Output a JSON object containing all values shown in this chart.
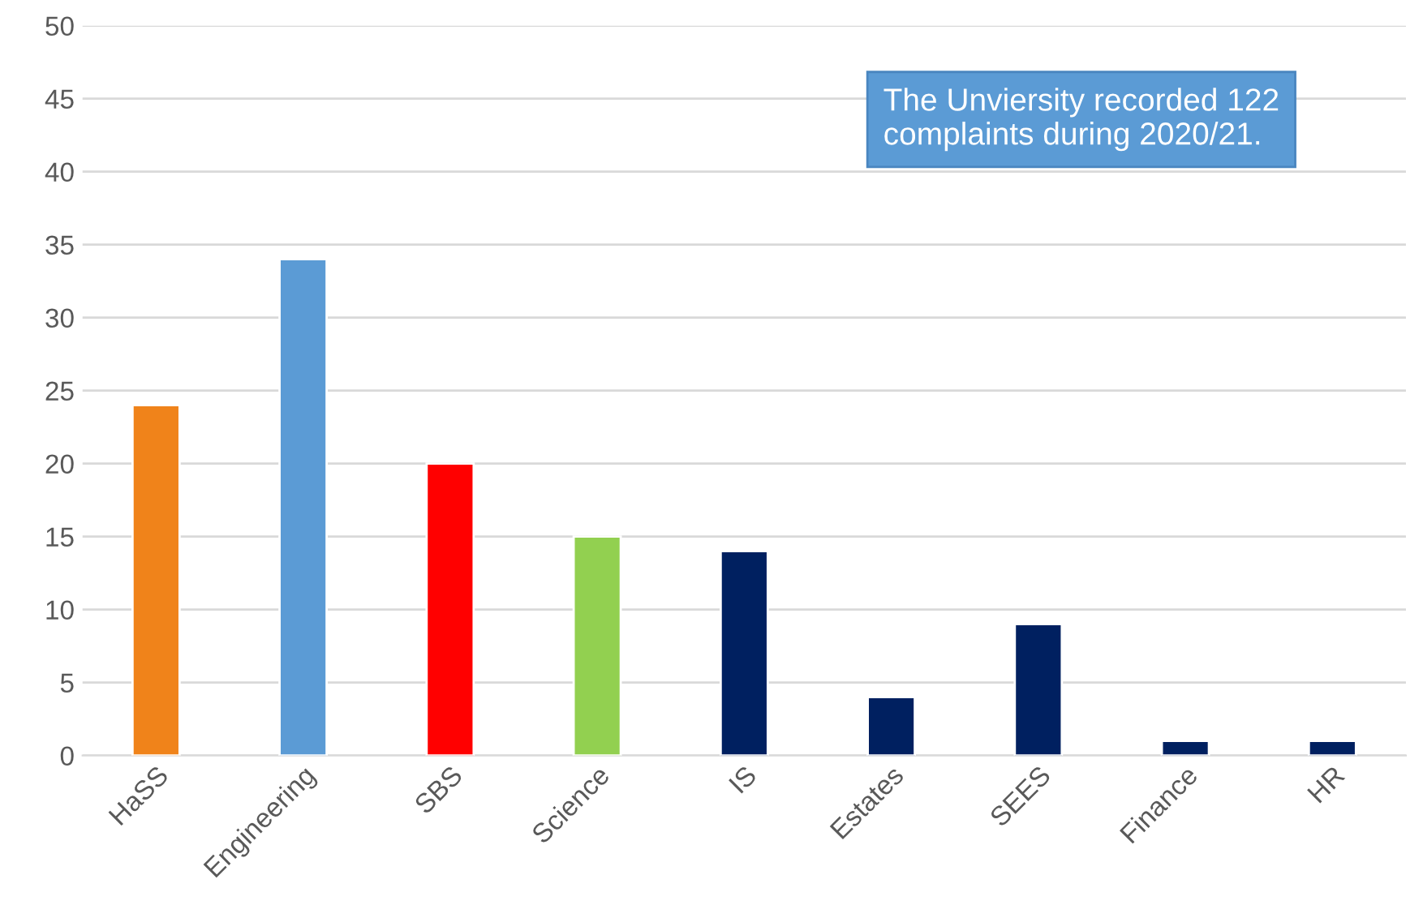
{
  "chart_data": {
    "type": "bar",
    "categories": [
      "HaSS",
      "Engineering",
      "SBS",
      "Science",
      "IS",
      "Estates",
      "SEES",
      "Finance",
      "HR"
    ],
    "values": [
      24,
      34,
      20,
      15,
      14,
      4,
      9,
      1,
      1
    ],
    "colors": [
      "#f0831a",
      "#5b9bd5",
      "#ff0000",
      "#92d050",
      "#002060",
      "#002060",
      "#002060",
      "#002060",
      "#002060"
    ],
    "ylim": [
      0,
      50
    ],
    "yticks": [
      0,
      5,
      10,
      15,
      20,
      25,
      30,
      35,
      40,
      45,
      50
    ],
    "grid": "y",
    "annotations": [
      "The Unviersity recorded 122 complaints during 2020/21."
    ]
  }
}
